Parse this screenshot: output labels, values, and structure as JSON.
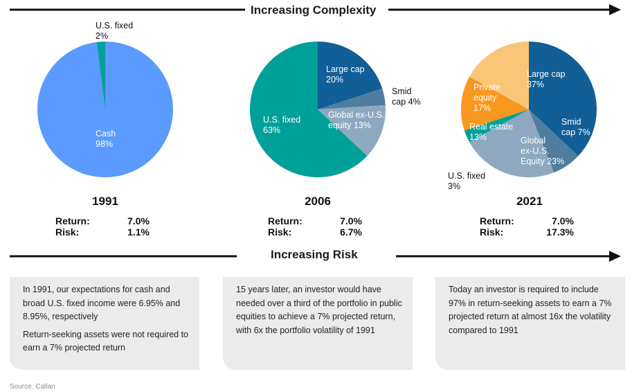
{
  "top_banner": {
    "title": "Increasing Complexity"
  },
  "bottom_banner": {
    "title": "Increasing Risk"
  },
  "colors": {
    "cash": "#5b9aff",
    "us_fixed": "#00a09a",
    "large_cap": "#125e96",
    "smid_cap": "#4f7da0",
    "global_ex_us": "#8ea9bf",
    "private_equity": "#f9c678",
    "real_estate": "#f8981f"
  },
  "chart_data": [
    {
      "type": "pie",
      "title": "1991",
      "slices": [
        {
          "label": "Cash",
          "value": 98,
          "display": "98%",
          "color": "#5b9aff"
        },
        {
          "label": "U.S. fixed",
          "value": 2,
          "display": "2%",
          "color": "#00a09a"
        }
      ],
      "return": "7.0%",
      "risk": "1.1%"
    },
    {
      "type": "pie",
      "title": "2006",
      "slices": [
        {
          "label": "Large cap",
          "value": 20,
          "display": "20%",
          "color": "#125e96"
        },
        {
          "label": "Smid cap",
          "value": 4,
          "display": "4%",
          "color": "#4f7da0"
        },
        {
          "label": "Global ex-U.S. equity",
          "value": 13,
          "display": "13%",
          "color": "#8ea9bf"
        },
        {
          "label": "U.S. fixed",
          "value": 63,
          "display": "63%",
          "color": "#00a09a"
        }
      ],
      "return": "7.0%",
      "risk": "6.7%"
    },
    {
      "type": "pie",
      "title": "2021",
      "slices": [
        {
          "label": "Large cap",
          "value": 37,
          "display": "37%",
          "color": "#125e96"
        },
        {
          "label": "Smid cap",
          "value": 7,
          "display": "7%",
          "color": "#4f7da0"
        },
        {
          "label": "Global ex-U.S. Equity",
          "value": 23,
          "display": "23%",
          "color": "#8ea9bf"
        },
        {
          "label": "U.S. fixed",
          "value": 3,
          "display": "3%",
          "color": "#00a09a"
        },
        {
          "label": "Real estate",
          "value": 13,
          "display": "13%",
          "color": "#f8981f"
        },
        {
          "label": "Private equity",
          "value": 17,
          "display": "17%",
          "color": "#f9c678"
        }
      ],
      "return": "7.0%",
      "risk": "17.3%"
    }
  ],
  "labels": {
    "return": "Return:",
    "risk": "Risk:"
  },
  "pie_labels": {
    "p1991": {
      "cash_name": "Cash",
      "cash_pct": "98%",
      "fixed_name": "U.S. fixed",
      "fixed_pct": "2%"
    },
    "p2006": {
      "large_name": "Large cap",
      "large_pct": "20%",
      "smid_line1": "Smid",
      "smid_line2": "cap 4%",
      "global_line1": "Global ex-U.S.",
      "global_line2": "equity 13%",
      "fixed_name": "U.S. fixed",
      "fixed_pct": "63%"
    },
    "p2021": {
      "large_name": "Large cap",
      "large_pct": "37%",
      "smid_line1": "Smid",
      "smid_line2": "cap 7%",
      "global_line1": "Global",
      "global_line2": "ex-U.S.",
      "global_line3": "Equity 23%",
      "private_line1": "Private",
      "private_line2": "equity",
      "private_pct": "17%",
      "real_name": "Real estate",
      "real_pct": "13%",
      "fixed_name": "U.S. fixed",
      "fixed_pct": "3%"
    }
  },
  "boxes": [
    {
      "p1": "In 1991, our expectations for cash and broad U.S. fixed income were 6.95% and 8.95%, respectively",
      "p2": "Return-seeking assets were not required to earn a 7% projected return"
    },
    {
      "p1": "15 years later, an investor would have needed over a third of the portfolio in public equities to achieve a 7% projected return, with 6x the portfolio volatility of 1991"
    },
    {
      "p1": "Today an investor is required to include 97% in return-seeking assets to earn a 7% projected return at almost 16x the volatility compared to 1991"
    }
  ],
  "source": "Source: Callan"
}
